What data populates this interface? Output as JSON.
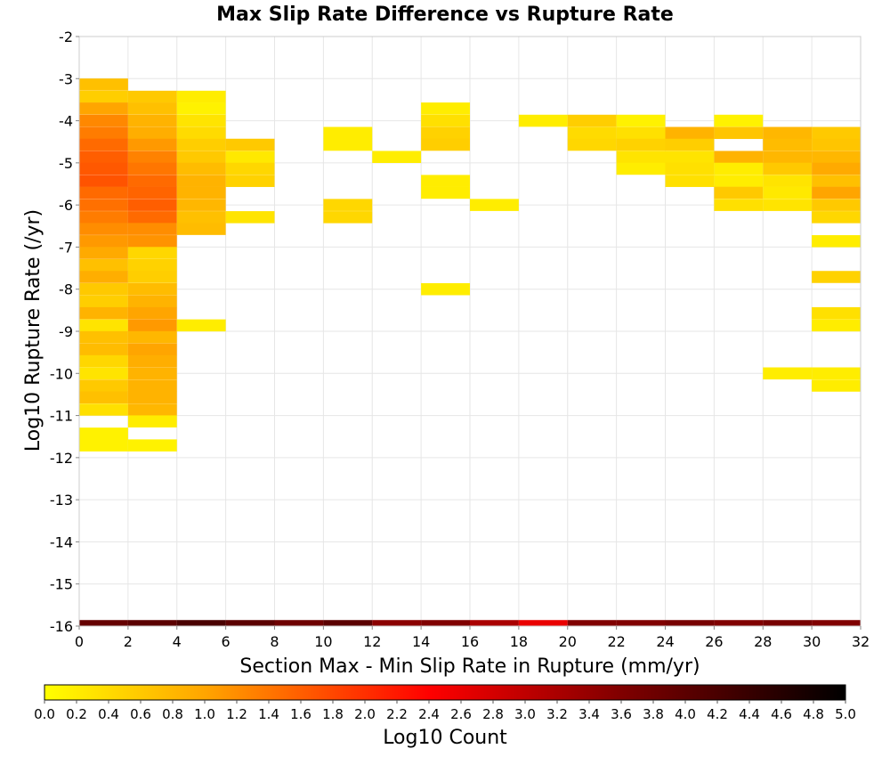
{
  "chart_data": {
    "type": "heatmap",
    "title": "Max Slip Rate Difference vs Rupture Rate",
    "xlabel": "Section Max - Min Slip Rate in Rupture (mm/yr)",
    "ylabel": "Log10 Rupture Rate (/yr)",
    "xlim": [
      0,
      32
    ],
    "ylim": [
      -16,
      -2
    ],
    "xticks": [
      "0",
      "2",
      "4",
      "6",
      "8",
      "10",
      "12",
      "14",
      "16",
      "18",
      "20",
      "22",
      "24",
      "26",
      "28",
      "30",
      "32"
    ],
    "yticks": [
      "-2",
      "-3",
      "-4",
      "-5",
      "-6",
      "-7",
      "-8",
      "-9",
      "-10",
      "-11",
      "-12",
      "-13",
      "-14",
      "-15",
      "-16"
    ],
    "bin_width_x": 2,
    "bin_height_y": 0.286,
    "grid": true,
    "colorbar": {
      "label": "Log10 Count",
      "min": 0.0,
      "max": 5.0,
      "ticks": [
        "0.0",
        "0.2",
        "0.4",
        "0.6",
        "0.8",
        "1.0",
        "1.2",
        "1.4",
        "1.6",
        "1.8",
        "2.0",
        "2.2",
        "2.4",
        "2.6",
        "2.8",
        "3.0",
        "3.2",
        "3.4",
        "3.6",
        "3.8",
        "4.0",
        "4.2",
        "4.4",
        "4.6",
        "4.8",
        "5.0"
      ],
      "colors": [
        "#ffff00",
        "#ffa500",
        "#ff0000",
        "#800000",
        "#000000"
      ],
      "placement": "bottom"
    },
    "cells": [
      {
        "x": 0,
        "y": -3.14,
        "v": 0.7
      },
      {
        "x": 0,
        "y": -3.43,
        "v": 0.55
      },
      {
        "x": 0,
        "y": -3.71,
        "v": 1.0
      },
      {
        "x": 0,
        "y": -4.0,
        "v": 1.25
      },
      {
        "x": 0,
        "y": -4.29,
        "v": 1.35
      },
      {
        "x": 0,
        "y": -4.57,
        "v": 1.5
      },
      {
        "x": 0,
        "y": -4.86,
        "v": 1.6
      },
      {
        "x": 0,
        "y": -5.14,
        "v": 1.65
      },
      {
        "x": 0,
        "y": -5.43,
        "v": 1.7
      },
      {
        "x": 0,
        "y": -5.71,
        "v": 1.5
      },
      {
        "x": 0,
        "y": -6.0,
        "v": 1.45
      },
      {
        "x": 0,
        "y": -6.29,
        "v": 1.35
      },
      {
        "x": 0,
        "y": -6.57,
        "v": 1.2
      },
      {
        "x": 0,
        "y": -6.86,
        "v": 1.1
      },
      {
        "x": 0,
        "y": -7.14,
        "v": 0.95
      },
      {
        "x": 0,
        "y": -7.43,
        "v": 0.7
      },
      {
        "x": 0,
        "y": -7.71,
        "v": 0.9
      },
      {
        "x": 0,
        "y": -8.0,
        "v": 0.6
      },
      {
        "x": 0,
        "y": -8.29,
        "v": 0.55
      },
      {
        "x": 0,
        "y": -8.57,
        "v": 0.85
      },
      {
        "x": 0,
        "y": -8.86,
        "v": 0.3
      },
      {
        "x": 0,
        "y": -9.14,
        "v": 0.7
      },
      {
        "x": 0,
        "y": -9.43,
        "v": 0.75
      },
      {
        "x": 0,
        "y": -9.71,
        "v": 0.45
      },
      {
        "x": 0,
        "y": -10.0,
        "v": 0.3
      },
      {
        "x": 0,
        "y": -10.29,
        "v": 0.6
      },
      {
        "x": 0,
        "y": -10.57,
        "v": 0.7
      },
      {
        "x": 0,
        "y": -10.86,
        "v": 0.35
      },
      {
        "x": 0,
        "y": -11.43,
        "v": 0.15
      },
      {
        "x": 0,
        "y": -11.71,
        "v": 0.15
      },
      {
        "x": 2,
        "y": -3.43,
        "v": 0.6
      },
      {
        "x": 2,
        "y": -3.71,
        "v": 0.7
      },
      {
        "x": 2,
        "y": -4.0,
        "v": 0.85
      },
      {
        "x": 2,
        "y": -4.29,
        "v": 0.9
      },
      {
        "x": 2,
        "y": -4.57,
        "v": 1.1
      },
      {
        "x": 2,
        "y": -4.86,
        "v": 1.3
      },
      {
        "x": 2,
        "y": -5.14,
        "v": 1.4
      },
      {
        "x": 2,
        "y": -5.43,
        "v": 1.5
      },
      {
        "x": 2,
        "y": -5.71,
        "v": 1.55
      },
      {
        "x": 2,
        "y": -6.0,
        "v": 1.6
      },
      {
        "x": 2,
        "y": -6.29,
        "v": 1.5
      },
      {
        "x": 2,
        "y": -6.57,
        "v": 1.2
      },
      {
        "x": 2,
        "y": -6.86,
        "v": 1.15
      },
      {
        "x": 2,
        "y": -7.14,
        "v": 0.45
      },
      {
        "x": 2,
        "y": -7.43,
        "v": 0.5
      },
      {
        "x": 2,
        "y": -7.71,
        "v": 0.55
      },
      {
        "x": 2,
        "y": -8.0,
        "v": 0.75
      },
      {
        "x": 2,
        "y": -8.29,
        "v": 0.85
      },
      {
        "x": 2,
        "y": -8.57,
        "v": 1.0
      },
      {
        "x": 2,
        "y": -8.86,
        "v": 1.1
      },
      {
        "x": 2,
        "y": -9.14,
        "v": 0.8
      },
      {
        "x": 2,
        "y": -9.43,
        "v": 1.0
      },
      {
        "x": 2,
        "y": -9.71,
        "v": 0.9
      },
      {
        "x": 2,
        "y": -10.0,
        "v": 0.85
      },
      {
        "x": 2,
        "y": -10.29,
        "v": 0.85
      },
      {
        "x": 2,
        "y": -10.57,
        "v": 0.85
      },
      {
        "x": 2,
        "y": -10.86,
        "v": 0.8
      },
      {
        "x": 2,
        "y": -11.14,
        "v": 0.2
      },
      {
        "x": 2,
        "y": -11.71,
        "v": 0.15
      },
      {
        "x": 4,
        "y": -3.43,
        "v": 0.2
      },
      {
        "x": 4,
        "y": -3.71,
        "v": 0.15
      },
      {
        "x": 4,
        "y": -4.0,
        "v": 0.3
      },
      {
        "x": 4,
        "y": -4.29,
        "v": 0.4
      },
      {
        "x": 4,
        "y": -4.57,
        "v": 0.55
      },
      {
        "x": 4,
        "y": -4.86,
        "v": 0.6
      },
      {
        "x": 4,
        "y": -5.14,
        "v": 0.75
      },
      {
        "x": 4,
        "y": -5.43,
        "v": 0.85
      },
      {
        "x": 4,
        "y": -5.71,
        "v": 0.85
      },
      {
        "x": 4,
        "y": -6.0,
        "v": 0.8
      },
      {
        "x": 4,
        "y": -6.29,
        "v": 0.7
      },
      {
        "x": 4,
        "y": -6.57,
        "v": 0.75
      },
      {
        "x": 4,
        "y": -8.86,
        "v": 0.2
      },
      {
        "x": 6,
        "y": -4.57,
        "v": 0.6
      },
      {
        "x": 6,
        "y": -4.86,
        "v": 0.25
      },
      {
        "x": 6,
        "y": -5.14,
        "v": 0.45
      },
      {
        "x": 6,
        "y": -5.43,
        "v": 0.5
      },
      {
        "x": 6,
        "y": -6.29,
        "v": 0.3
      },
      {
        "x": 10,
        "y": -4.29,
        "v": 0.2
      },
      {
        "x": 10,
        "y": -4.57,
        "v": 0.2
      },
      {
        "x": 10,
        "y": -6.0,
        "v": 0.45
      },
      {
        "x": 10,
        "y": -6.29,
        "v": 0.45
      },
      {
        "x": 12,
        "y": -4.86,
        "v": 0.2
      },
      {
        "x": 14,
        "y": -3.71,
        "v": 0.2
      },
      {
        "x": 14,
        "y": -4.0,
        "v": 0.35
      },
      {
        "x": 14,
        "y": -4.29,
        "v": 0.5
      },
      {
        "x": 14,
        "y": -4.57,
        "v": 0.55
      },
      {
        "x": 14,
        "y": -5.43,
        "v": 0.2
      },
      {
        "x": 14,
        "y": -5.71,
        "v": 0.2
      },
      {
        "x": 14,
        "y": -8.0,
        "v": 0.2
      },
      {
        "x": 16,
        "y": -6.0,
        "v": 0.2
      },
      {
        "x": 18,
        "y": -4.0,
        "v": 0.2
      },
      {
        "x": 20,
        "y": -4.0,
        "v": 0.55
      },
      {
        "x": 20,
        "y": -4.29,
        "v": 0.4
      },
      {
        "x": 20,
        "y": -4.57,
        "v": 0.45
      },
      {
        "x": 22,
        "y": -4.0,
        "v": 0.15
      },
      {
        "x": 22,
        "y": -4.29,
        "v": 0.35
      },
      {
        "x": 22,
        "y": -4.57,
        "v": 0.5
      },
      {
        "x": 22,
        "y": -4.86,
        "v": 0.3
      },
      {
        "x": 22,
        "y": -5.14,
        "v": 0.2
      },
      {
        "x": 24,
        "y": -4.29,
        "v": 0.85
      },
      {
        "x": 24,
        "y": -4.57,
        "v": 0.55
      },
      {
        "x": 24,
        "y": -4.86,
        "v": 0.3
      },
      {
        "x": 24,
        "y": -5.14,
        "v": 0.35
      },
      {
        "x": 24,
        "y": -5.43,
        "v": 0.35
      },
      {
        "x": 26,
        "y": -4.0,
        "v": 0.15
      },
      {
        "x": 26,
        "y": -4.29,
        "v": 0.65
      },
      {
        "x": 26,
        "y": -4.86,
        "v": 0.85
      },
      {
        "x": 26,
        "y": -5.14,
        "v": 0.2
      },
      {
        "x": 26,
        "y": -5.43,
        "v": 0.2
      },
      {
        "x": 26,
        "y": -5.71,
        "v": 0.6
      },
      {
        "x": 26,
        "y": -6.0,
        "v": 0.35
      },
      {
        "x": 28,
        "y": -4.29,
        "v": 0.8
      },
      {
        "x": 28,
        "y": -4.57,
        "v": 0.75
      },
      {
        "x": 28,
        "y": -4.86,
        "v": 0.8
      },
      {
        "x": 28,
        "y": -5.14,
        "v": 0.6
      },
      {
        "x": 28,
        "y": -5.43,
        "v": 0.3
      },
      {
        "x": 28,
        "y": -5.71,
        "v": 0.25
      },
      {
        "x": 28,
        "y": -6.0,
        "v": 0.3
      },
      {
        "x": 28,
        "y": -10.0,
        "v": 0.2
      },
      {
        "x": 30,
        "y": -4.29,
        "v": 0.6
      },
      {
        "x": 30,
        "y": -4.57,
        "v": 0.65
      },
      {
        "x": 30,
        "y": -4.86,
        "v": 0.8
      },
      {
        "x": 30,
        "y": -5.14,
        "v": 0.95
      },
      {
        "x": 30,
        "y": -5.43,
        "v": 0.7
      },
      {
        "x": 30,
        "y": -5.71,
        "v": 1.0
      },
      {
        "x": 30,
        "y": -6.0,
        "v": 0.6
      },
      {
        "x": 30,
        "y": -6.29,
        "v": 0.45
      },
      {
        "x": 30,
        "y": -6.86,
        "v": 0.2
      },
      {
        "x": 30,
        "y": -7.71,
        "v": 0.5
      },
      {
        "x": 30,
        "y": -8.57,
        "v": 0.35
      },
      {
        "x": 30,
        "y": -8.86,
        "v": 0.2
      },
      {
        "x": 30,
        "y": -10.0,
        "v": 0.2
      },
      {
        "x": 30,
        "y": -10.29,
        "v": 0.2
      },
      {
        "x": 0,
        "y": -16.0,
        "v": 3.9
      },
      {
        "x": 2,
        "y": -16.0,
        "v": 4.0
      },
      {
        "x": 4,
        "y": -16.0,
        "v": 4.2
      },
      {
        "x": 6,
        "y": -16.0,
        "v": 4.0
      },
      {
        "x": 8,
        "y": -16.0,
        "v": 3.8
      },
      {
        "x": 10,
        "y": -16.0,
        "v": 4.0
      },
      {
        "x": 12,
        "y": -16.0,
        "v": 3.5
      },
      {
        "x": 14,
        "y": -16.0,
        "v": 3.6
      },
      {
        "x": 16,
        "y": -16.0,
        "v": 3.2
      },
      {
        "x": 18,
        "y": -16.0,
        "v": 2.6
      },
      {
        "x": 20,
        "y": -16.0,
        "v": 3.6
      },
      {
        "x": 22,
        "y": -16.0,
        "v": 3.6
      },
      {
        "x": 24,
        "y": -16.0,
        "v": 3.7
      },
      {
        "x": 26,
        "y": -16.0,
        "v": 3.6
      },
      {
        "x": 28,
        "y": -16.0,
        "v": 3.7
      },
      {
        "x": 30,
        "y": -16.0,
        "v": 3.6
      }
    ]
  }
}
